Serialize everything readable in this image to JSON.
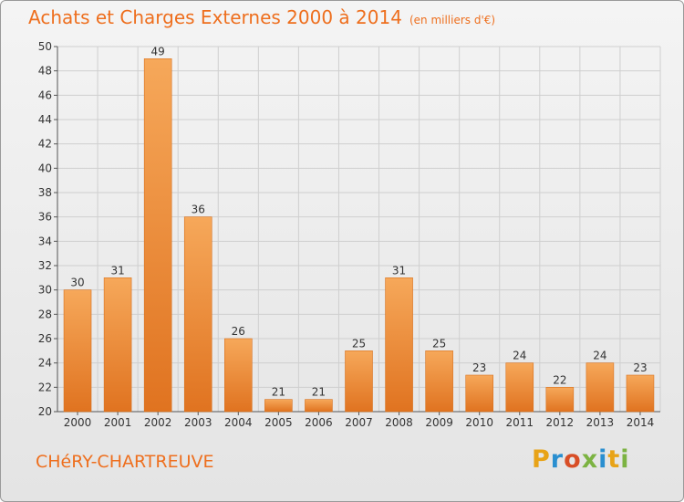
{
  "header": {
    "title": "Achats et Charges Externes 2000 à 2014",
    "subtitle": "(en milliers d'€)"
  },
  "footer": {
    "town": "CHéRY-CHARTREUVE",
    "logo": "Proxiti"
  },
  "colors": {
    "accent": "#ee6f1e",
    "bar_light": "#f6a85a",
    "bar_dark": "#e07320",
    "grid": "#cfcfcf",
    "logo_letters": [
      "#e8a317",
      "#2a8fd0",
      "#d84e26",
      "#7cb342",
      "#2a8fd0",
      "#e8a317",
      "#7cb342"
    ]
  },
  "chart_data": {
    "type": "bar",
    "categories": [
      "2000",
      "2001",
      "2002",
      "2003",
      "2004",
      "2005",
      "2006",
      "2007",
      "2008",
      "2009",
      "2010",
      "2011",
      "2012",
      "2013",
      "2014"
    ],
    "values": [
      30,
      31,
      49,
      36,
      26,
      21,
      21,
      25,
      31,
      25,
      23,
      24,
      22,
      24,
      23
    ],
    "title": "Achats et Charges Externes 2000 à 2014",
    "subtitle": "(en milliers d'€)",
    "xlabel": "",
    "ylabel": "",
    "ylim": [
      20,
      50
    ],
    "yticks": [
      20,
      22,
      24,
      26,
      28,
      30,
      32,
      34,
      36,
      38,
      40,
      42,
      44,
      46,
      48,
      50
    ],
    "grid": true,
    "legend": "none"
  }
}
